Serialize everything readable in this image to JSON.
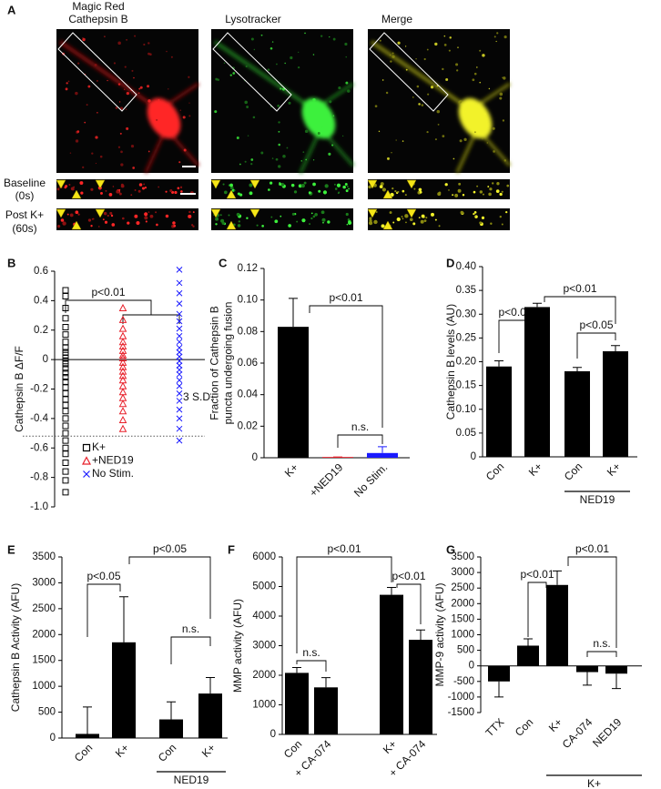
{
  "image_panel": {
    "label": "A",
    "titles": [
      {
        "lines": [
          "Magic Red",
          "Cathepsin B"
        ]
      },
      {
        "lines": [
          "Lysotracker"
        ]
      },
      {
        "lines": [
          "Merge"
        ]
      }
    ],
    "rows": [
      {
        "lines": [
          "Baseline",
          "(0s)"
        ]
      },
      {
        "lines": [
          "Post K+",
          "(60s)"
        ]
      }
    ]
  },
  "chart_data": [
    {
      "label": "B",
      "type": "scatter",
      "ylabel": [
        "Cathepsin B ΔF/F"
      ],
      "ylim": [
        -1.0,
        0.6
      ],
      "yticks": [
        0.6,
        0.4,
        0.2,
        0,
        -0.2,
        -0.4,
        -0.6,
        -0.8,
        {
          "value": -1.0,
          "label": "-1.0"
        }
      ],
      "series": [
        {
          "name": "K+",
          "color": "#000000",
          "marker": "square",
          "values": [
            0.47,
            0.43,
            0.35,
            0.28,
            0.22,
            0.17,
            0.12,
            0.08,
            0.05,
            0.03,
            0.01,
            -0.01,
            -0.03,
            -0.06,
            -0.09,
            -0.12,
            -0.15,
            -0.19,
            -0.23,
            -0.27,
            -0.31,
            -0.35,
            -0.4,
            -0.45,
            -0.5,
            -0.55,
            -0.6,
            -0.64,
            -0.7,
            -0.76,
            -0.82,
            -0.9
          ]
        },
        {
          "name": "+NED19",
          "color": "#e8202a",
          "marker": "triangle",
          "values": [
            0.35,
            0.27,
            0.21,
            0.16,
            0.12,
            0.09,
            0.06,
            0.03,
            0.01,
            -0.02,
            -0.05,
            -0.08,
            -0.11,
            -0.14,
            -0.18,
            -0.22,
            -0.26,
            -0.3,
            -0.35,
            -0.41,
            -0.47
          ]
        },
        {
          "name": "No Stim.",
          "color": "#1a1aff",
          "marker": "x",
          "values": [
            0.61,
            0.52,
            0.45,
            0.38,
            0.31,
            0.26,
            0.21,
            0.16,
            0.12,
            0.08,
            0.05,
            0.02,
            -0.01,
            -0.04,
            -0.07,
            -0.1,
            -0.14,
            -0.18,
            -0.23,
            -0.28,
            -0.34,
            -0.4,
            -0.47,
            -0.55
          ]
        }
      ],
      "threshold": -0.52,
      "annotations": [
        "p<0.01",
        "3 S.D."
      ]
    },
    {
      "label": "C",
      "type": "bar",
      "ylabel": [
        "Fraction of Cathepsin B",
        "puncta undergoing fusion"
      ],
      "categories": [
        "K+",
        "+NED19",
        "No Stim."
      ],
      "values": [
        0.083,
        0.0005,
        0.003
      ],
      "errors": [
        0.018,
        0,
        0.004
      ],
      "colors": [
        "#000000",
        "#e8202a",
        "#1a1aff"
      ],
      "ylim": [
        0,
        0.12
      ],
      "yticks": [
        0,
        0.02,
        0.04,
        0.06,
        0.08,
        {
          "value": 0.1,
          "label": "0.10"
        },
        0.12
      ],
      "annotations": [
        "p<0.01",
        "n.s."
      ]
    },
    {
      "label": "D",
      "type": "bar",
      "ylabel": [
        "Cathepsin B levels (AU)"
      ],
      "categories": [
        "Con",
        "K+",
        "Con",
        "K+"
      ],
      "values": [
        0.19,
        0.315,
        0.18,
        0.222
      ],
      "errors": [
        0.012,
        0.008,
        0.008,
        0.012
      ],
      "color": "#000000",
      "group_label": "NED19",
      "ylim": [
        0,
        0.4
      ],
      "yticks": [
        0,
        0.05,
        {
          "value": 0.1,
          "label": "0.10"
        },
        0.15,
        {
          "value": 0.2,
          "label": "0.20"
        },
        0.25,
        {
          "value": 0.3,
          "label": "0.30"
        },
        0.35,
        {
          "value": 0.4,
          "label": "0.40"
        }
      ],
      "annotations": [
        "p<0.01",
        "p<0.01",
        "p<0.05"
      ]
    },
    {
      "label": "E",
      "type": "bar",
      "ylabel": [
        "Cathepsin B Activity (AFU)"
      ],
      "categories": [
        "Con",
        "K+",
        "Con",
        "K+"
      ],
      "values": [
        80,
        1850,
        360,
        860
      ],
      "errors": [
        520,
        880,
        340,
        310
      ],
      "color": "#000000",
      "group_label": "NED19",
      "ylim": [
        0,
        3500
      ],
      "yticks": [
        0,
        500,
        1000,
        1500,
        2000,
        2500,
        3000,
        3500
      ],
      "annotations": [
        "p<0.05",
        "p<0.05",
        "n.s."
      ]
    },
    {
      "label": "F",
      "type": "bar",
      "ylabel": [
        "MMP activity (AFU)"
      ],
      "categories": [
        "Con",
        "+ CA-074",
        "K+",
        "+ CA-074"
      ],
      "values": [
        2080,
        1590,
        4720,
        3200
      ],
      "errors": [
        180,
        330,
        250,
        330
      ],
      "color": "#000000",
      "ylim": [
        0,
        6000
      ],
      "yticks": [
        0,
        1000,
        2000,
        3000,
        4000,
        5000,
        6000
      ],
      "annotations": [
        "n.s.",
        "p<0.01",
        "p<0.01"
      ]
    },
    {
      "label": "G",
      "type": "bar",
      "ylabel": [
        "MMP-9 activity (AFU)"
      ],
      "categories": [
        "TTX",
        "Con",
        "K+",
        "CA-074",
        "NED19"
      ],
      "values": [
        -500,
        650,
        2600,
        -200,
        -250
      ],
      "errors": [
        500,
        220,
        450,
        420,
        480
      ],
      "color": "#000000",
      "group_label": "K+",
      "ylim": [
        -1500,
        3500
      ],
      "yticks": [
        3500,
        3000,
        2500,
        2000,
        1500,
        1000,
        500,
        0,
        -500,
        -1000,
        -1500
      ],
      "annotations": [
        "p<0.01",
        "p<0.01",
        "n.s."
      ]
    }
  ]
}
